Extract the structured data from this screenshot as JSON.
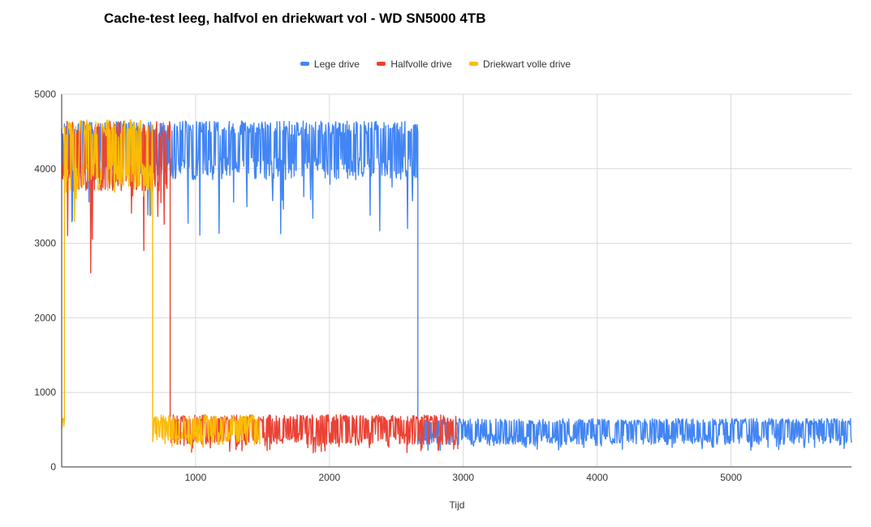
{
  "chart_data": {
    "type": "line",
    "title": "Cache-test leeg, halfvol en driekwart vol - WD SN5000 4TB",
    "xlabel": "Tijd",
    "ylabel": "",
    "xlim": [
      0,
      5900
    ],
    "ylim": [
      0,
      5000
    ],
    "x_ticks": [
      "1000",
      "2000",
      "3000",
      "4000",
      "5000"
    ],
    "y_ticks": [
      "0",
      "1000",
      "2000",
      "3000",
      "4000",
      "5000"
    ],
    "grid": true,
    "legend_position": "top",
    "series": [
      {
        "name": "Lege drive",
        "color": "#4285f4",
        "segments": [
          {
            "x_start": 0,
            "x_end": 2660,
            "low": 3850,
            "high": 4640,
            "dips_to": 3100
          },
          {
            "x_start": 2660,
            "x_end": 5900,
            "low": 300,
            "high": 650,
            "dips_to": 220
          }
        ]
      },
      {
        "name": "Halfvolle drive",
        "color": "#ea4335",
        "segments": [
          {
            "x_start": 0,
            "x_end": 810,
            "low": 3700,
            "high": 4640,
            "dips_to": 2600
          },
          {
            "x_start": 810,
            "x_end": 2960,
            "low": 300,
            "high": 700,
            "dips_to": 180
          }
        ]
      },
      {
        "name": "Driekwart volle drive",
        "color": "#fbbc04",
        "segments": [
          {
            "x_start": 0,
            "x_end": 20,
            "low": 500,
            "high": 650,
            "dips_to": 480
          },
          {
            "x_start": 20,
            "x_end": 680,
            "low": 3700,
            "high": 4660,
            "dips_to": 3200
          },
          {
            "x_start": 680,
            "x_end": 1480,
            "low": 300,
            "high": 700,
            "dips_to": 240
          }
        ]
      }
    ]
  }
}
